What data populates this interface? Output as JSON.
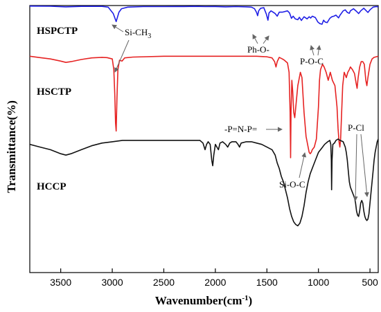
{
  "chart_data": {
    "type": "line",
    "title": "",
    "xlabel_main": "Wavenumber(cm",
    "xlabel_sup": "-1",
    "xlabel_close": ")",
    "ylabel": "Transmittance(%)",
    "xlim": [
      3800,
      420
    ],
    "x_reversed": true,
    "x_ticks": [
      3500,
      3000,
      2500,
      2000,
      1500,
      1000,
      500
    ],
    "y_ticks": [],
    "y_values_unlabeled": true,
    "series": [
      {
        "name": "HSPCTP",
        "color": "#1f1fe6",
        "points": [
          [
            3800,
            0.2
          ],
          [
            3600,
            0.25
          ],
          [
            3450,
            0.5
          ],
          [
            3300,
            0.3
          ],
          [
            3100,
            0.3
          ],
          [
            3040,
            0.6
          ],
          [
            2990,
            3.0
          ],
          [
            2962,
            6.0
          ],
          [
            2935,
            2.5
          ],
          [
            2910,
            1.2
          ],
          [
            2850,
            0.6
          ],
          [
            2700,
            0.4
          ],
          [
            2500,
            0.4
          ],
          [
            2300,
            0.35
          ],
          [
            2200,
            0.3
          ],
          [
            2100,
            0.4
          ],
          [
            2000,
            0.35
          ],
          [
            1900,
            0.5
          ],
          [
            1800,
            0.4
          ],
          [
            1700,
            0.5
          ],
          [
            1650,
            0.6
          ],
          [
            1620,
            1.2
          ],
          [
            1600,
            2.6
          ],
          [
            1590,
            3.8
          ],
          [
            1580,
            2.0
          ],
          [
            1560,
            1.0
          ],
          [
            1530,
            0.8
          ],
          [
            1505,
            3.2
          ],
          [
            1490,
            5.5
          ],
          [
            1480,
            2.8
          ],
          [
            1460,
            2.0
          ],
          [
            1440,
            2.5
          ],
          [
            1420,
            3.0
          ],
          [
            1400,
            4.0
          ],
          [
            1380,
            2.5
          ],
          [
            1350,
            2.5
          ],
          [
            1300,
            2.0
          ],
          [
            1280,
            2.8
          ],
          [
            1262,
            4.8
          ],
          [
            1245,
            4.0
          ],
          [
            1225,
            5.0
          ],
          [
            1200,
            5.3
          ],
          [
            1185,
            4.4
          ],
          [
            1165,
            5.6
          ],
          [
            1140,
            4.2
          ],
          [
            1110,
            5.0
          ],
          [
            1090,
            4.2
          ],
          [
            1075,
            4.7
          ],
          [
            1060,
            4.0
          ],
          [
            1030,
            4.5
          ],
          [
            1005,
            6.2
          ],
          [
            985,
            6.8
          ],
          [
            965,
            7.0
          ],
          [
            950,
            5.5
          ],
          [
            935,
            6.2
          ],
          [
            915,
            6.4
          ],
          [
            890,
            4.8
          ],
          [
            870,
            4.2
          ],
          [
            850,
            4.0
          ],
          [
            830,
            3.6
          ],
          [
            805,
            4.6
          ],
          [
            790,
            3.6
          ],
          [
            760,
            2.0
          ],
          [
            740,
            1.6
          ],
          [
            720,
            2.6
          ],
          [
            700,
            2.9
          ],
          [
            690,
            2.0
          ],
          [
            660,
            1.2
          ],
          [
            630,
            2.2
          ],
          [
            610,
            3.0
          ],
          [
            590,
            2.0
          ],
          [
            560,
            1.0
          ],
          [
            540,
            1.8
          ],
          [
            520,
            2.6
          ],
          [
            500,
            1.6
          ],
          [
            470,
            0.6
          ],
          [
            440,
            0.4
          ],
          [
            420,
            0.5
          ]
        ]
      },
      {
        "name": "HSCTP",
        "color": "#e62222",
        "points": [
          [
            3800,
            19.0
          ],
          [
            3700,
            19.5
          ],
          [
            3600,
            20.0
          ],
          [
            3500,
            20.8
          ],
          [
            3450,
            21.3
          ],
          [
            3400,
            21.0
          ],
          [
            3300,
            20.2
          ],
          [
            3200,
            19.6
          ],
          [
            3100,
            19.4
          ],
          [
            3050,
            19.5
          ],
          [
            3000,
            20.0
          ],
          [
            2985,
            24.0
          ],
          [
            2975,
            34.0
          ],
          [
            2968,
            44.0
          ],
          [
            2962,
            47.0
          ],
          [
            2955,
            35.0
          ],
          [
            2945,
            24.0
          ],
          [
            2930,
            20.5
          ],
          [
            2905,
            20.8
          ],
          [
            2880,
            19.6
          ],
          [
            2800,
            19.3
          ],
          [
            2500,
            19.0
          ],
          [
            2200,
            19.0
          ],
          [
            2000,
            19.0
          ],
          [
            1800,
            19.0
          ],
          [
            1600,
            19.0
          ],
          [
            1500,
            19.2
          ],
          [
            1450,
            19.6
          ],
          [
            1425,
            21.0
          ],
          [
            1412,
            23.0
          ],
          [
            1400,
            21.0
          ],
          [
            1380,
            19.4
          ],
          [
            1350,
            20.0
          ],
          [
            1330,
            20.5
          ],
          [
            1300,
            21.5
          ],
          [
            1285,
            25.0
          ],
          [
            1275,
            40.0
          ],
          [
            1270,
            57.0
          ],
          [
            1266,
            40.0
          ],
          [
            1258,
            28.0
          ],
          [
            1250,
            32.0
          ],
          [
            1240,
            40.0
          ],
          [
            1230,
            42.0
          ],
          [
            1215,
            36.0
          ],
          [
            1200,
            30.0
          ],
          [
            1190,
            28.0
          ],
          [
            1175,
            25.0
          ],
          [
            1160,
            27.0
          ],
          [
            1140,
            40.0
          ],
          [
            1120,
            49.0
          ],
          [
            1100,
            53.0
          ],
          [
            1090,
            55.0
          ],
          [
            1080,
            55.5
          ],
          [
            1070,
            55.0
          ],
          [
            1060,
            54.0
          ],
          [
            1040,
            53.0
          ],
          [
            1020,
            50.0
          ],
          [
            1000,
            38.0
          ],
          [
            990,
            28.0
          ],
          [
            980,
            24.0
          ],
          [
            960,
            22.0
          ],
          [
            945,
            23.0
          ],
          [
            925,
            25.0
          ],
          [
            905,
            28.0
          ],
          [
            885,
            25.0
          ],
          [
            865,
            28.0
          ],
          [
            840,
            30.0
          ],
          [
            820,
            38.0
          ],
          [
            810,
            46.0
          ],
          [
            800,
            51.0
          ],
          [
            792,
            53.0
          ],
          [
            785,
            50.0
          ],
          [
            775,
            40.0
          ],
          [
            765,
            30.0
          ],
          [
            750,
            25.0
          ],
          [
            730,
            27.0
          ],
          [
            715,
            25.0
          ],
          [
            700,
            24.0
          ],
          [
            690,
            23.0
          ],
          [
            670,
            24.0
          ],
          [
            650,
            25.5
          ],
          [
            635,
            29.0
          ],
          [
            625,
            31.0
          ],
          [
            615,
            27.0
          ],
          [
            600,
            23.0
          ],
          [
            585,
            21.0
          ],
          [
            570,
            21.0
          ],
          [
            555,
            22.0
          ],
          [
            540,
            28.0
          ],
          [
            530,
            30.0
          ],
          [
            520,
            27.0
          ],
          [
            500,
            22.0
          ],
          [
            480,
            20.0
          ],
          [
            460,
            19.4
          ],
          [
            440,
            19.2
          ],
          [
            420,
            19.0
          ]
        ]
      },
      {
        "name": "HCCP",
        "color": "#111111",
        "points": [
          [
            3800,
            52.0
          ],
          [
            3700,
            53.0
          ],
          [
            3600,
            54.0
          ],
          [
            3500,
            55.5
          ],
          [
            3450,
            56.0
          ],
          [
            3400,
            55.5
          ],
          [
            3300,
            54.0
          ],
          [
            3200,
            52.5
          ],
          [
            3100,
            51.5
          ],
          [
            3000,
            51.0
          ],
          [
            2900,
            50.5
          ],
          [
            2800,
            50.5
          ],
          [
            2600,
            50.5
          ],
          [
            2400,
            50.5
          ],
          [
            2200,
            50.5
          ],
          [
            2150,
            50.5
          ],
          [
            2120,
            51.5
          ],
          [
            2100,
            54.0
          ],
          [
            2085,
            52.0
          ],
          [
            2070,
            51.0
          ],
          [
            2050,
            52.0
          ],
          [
            2035,
            58.0
          ],
          [
            2025,
            60.0
          ],
          [
            2015,
            56.0
          ],
          [
            2000,
            52.0
          ],
          [
            1985,
            53.0
          ],
          [
            1970,
            54.0
          ],
          [
            1955,
            51.5
          ],
          [
            1930,
            51.0
          ],
          [
            1900,
            52.0
          ],
          [
            1880,
            53.0
          ],
          [
            1860,
            51.5
          ],
          [
            1840,
            51.0
          ],
          [
            1820,
            51.0
          ],
          [
            1800,
            51.0
          ],
          [
            1780,
            52.0
          ],
          [
            1765,
            53.0
          ],
          [
            1750,
            51.5
          ],
          [
            1700,
            51.0
          ],
          [
            1650,
            51.0
          ],
          [
            1600,
            51.5
          ],
          [
            1550,
            52.0
          ],
          [
            1500,
            53.0
          ],
          [
            1450,
            54.0
          ],
          [
            1420,
            56.0
          ],
          [
            1400,
            59.0
          ],
          [
            1380,
            61.0
          ],
          [
            1360,
            64.0
          ],
          [
            1340,
            66.0
          ],
          [
            1320,
            69.0
          ],
          [
            1300,
            72.0
          ],
          [
            1280,
            76.0
          ],
          [
            1260,
            79.0
          ],
          [
            1240,
            81.0
          ],
          [
            1220,
            82.0
          ],
          [
            1200,
            82.5
          ],
          [
            1180,
            81.5
          ],
          [
            1160,
            79.0
          ],
          [
            1140,
            75.0
          ],
          [
            1120,
            70.0
          ],
          [
            1100,
            66.0
          ],
          [
            1080,
            63.0
          ],
          [
            1050,
            60.0
          ],
          [
            1020,
            57.0
          ],
          [
            1000,
            55.0
          ],
          [
            970,
            53.5
          ],
          [
            940,
            52.0
          ],
          [
            910,
            51.0
          ],
          [
            890,
            50.5
          ],
          [
            880,
            52.0
          ],
          [
            875,
            58.0
          ],
          [
            872,
            69.0
          ],
          [
            868,
            58.0
          ],
          [
            860,
            52.0
          ],
          [
            845,
            51.5
          ],
          [
            830,
            50.5
          ],
          [
            810,
            50.0
          ],
          [
            790,
            50.5
          ],
          [
            760,
            51.0
          ],
          [
            740,
            53.0
          ],
          [
            730,
            55.0
          ],
          [
            720,
            58.0
          ],
          [
            710,
            62.0
          ],
          [
            700,
            66.0
          ],
          [
            690,
            68.0
          ],
          [
            680,
            69.0
          ],
          [
            670,
            70.0
          ],
          [
            660,
            71.0
          ],
          [
            650,
            72.0
          ],
          [
            640,
            74.0
          ],
          [
            630,
            77.0
          ],
          [
            620,
            78.5
          ],
          [
            610,
            79.0
          ],
          [
            600,
            77.0
          ],
          [
            590,
            74.0
          ],
          [
            580,
            73.0
          ],
          [
            570,
            74.0
          ],
          [
            560,
            77.0
          ],
          [
            550,
            79.0
          ],
          [
            540,
            80.0
          ],
          [
            530,
            80.5
          ],
          [
            520,
            80.0
          ],
          [
            510,
            78.0
          ],
          [
            500,
            74.0
          ],
          [
            490,
            70.0
          ],
          [
            480,
            66.0
          ],
          [
            470,
            62.0
          ],
          [
            460,
            58.0
          ],
          [
            450,
            55.0
          ],
          [
            440,
            53.0
          ],
          [
            430,
            51.0
          ],
          [
            420,
            50.0
          ]
        ]
      }
    ],
    "annotations": {
      "si_ch3_prefix": "Si-CH",
      "si_ch3_sub": "3",
      "ph_o": "Ph-O-",
      "p_o_c": "P-O-C",
      "p_n_p": "-P=N-P=",
      "si_o_c": "Si-O-C",
      "p_cl": "P-Cl"
    }
  }
}
